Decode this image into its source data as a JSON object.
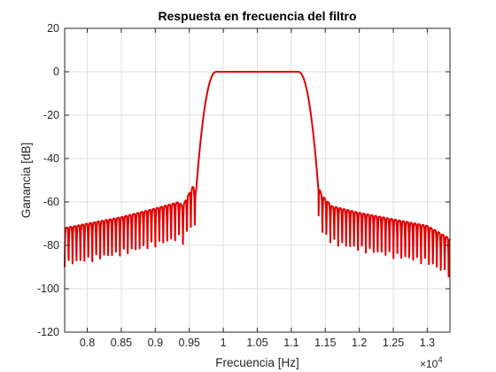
{
  "chart_data": {
    "type": "line",
    "title": "Respuesta en frecuencia del filtro",
    "xlabel": "Frecuencia [Hz]",
    "ylabel": "Ganancia [dB]",
    "x_multiplier_label": "×10",
    "x_multiplier_exponent": "4",
    "xlim": [
      0.7667,
      1.3333
    ],
    "ylim": [
      -120,
      20
    ],
    "x_ticks": [
      0.8,
      0.85,
      0.9,
      0.95,
      1,
      1.05,
      1.1,
      1.15,
      1.2,
      1.25,
      1.3
    ],
    "x_tick_labels": [
      "0.8",
      "0.85",
      "0.9",
      "0.95",
      "1",
      "1.05",
      "1.1",
      "1.15",
      "1.2",
      "1.25",
      "1.3"
    ],
    "y_ticks": [
      20,
      0,
      -20,
      -40,
      -60,
      -80,
      -100,
      -120
    ],
    "y_tick_labels": [
      "20",
      "0",
      "-20",
      "-40",
      "-60",
      "-80",
      "-100",
      "-120"
    ],
    "grid": true,
    "legend": "none",
    "series": [
      {
        "color": "#e00000",
        "passband_db": 0,
        "passband_x": [
          0.99,
          1.11
        ],
        "transition_x": [
          0.96,
          0.99,
          1.11,
          1.14
        ],
        "stopband_peaks": {
          "x": [
            0.7667,
            0.8,
            0.85,
            0.9,
            0.935,
            0.94,
            0.955,
            0.96
          ],
          "peak_db": [
            -72,
            -70,
            -67,
            -63,
            -60,
            -62,
            -53,
            -55
          ]
        },
        "stopband_peaks_right": {
          "x": [
            1.14,
            1.145,
            1.16,
            1.2,
            1.25,
            1.3,
            1.3333
          ],
          "peak_db": [
            -53,
            -57,
            -62,
            -65,
            -68,
            -71,
            -77
          ]
        },
        "ripple_period_x": 0.0058
      }
    ]
  }
}
